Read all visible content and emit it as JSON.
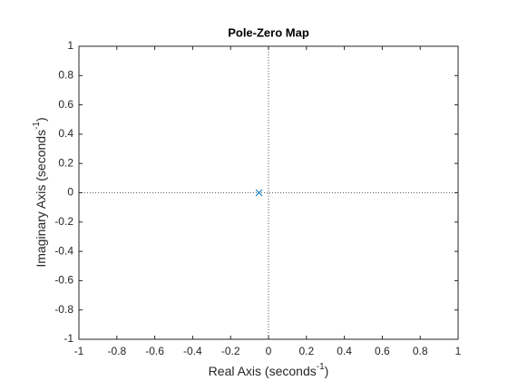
{
  "chart_data": {
    "type": "scatter",
    "title": "Pole-Zero Map",
    "xlabel": "Real Axis (seconds",
    "xlabel_sup": "-1",
    "xlabel_end": ")",
    "ylabel": "Imaginary Axis (seconds",
    "ylabel_sup": "-1",
    "ylabel_end": ")",
    "series": [
      {
        "marker": "x",
        "color": "#0072bd",
        "x": [
          -0.05
        ],
        "y": [
          0
        ]
      }
    ],
    "xlim": [
      -1,
      1
    ],
    "xticks": [
      -1,
      -0.8,
      -0.6,
      -0.4,
      -0.2,
      0,
      0.2,
      0.4,
      0.6,
      0.8,
      1
    ],
    "ylim": [
      -1,
      1
    ],
    "yticks": [
      -1,
      -0.8,
      -0.6,
      -0.4,
      -0.2,
      0,
      0.2,
      0.4,
      0.6,
      0.8,
      1
    ],
    "grid": false
  }
}
